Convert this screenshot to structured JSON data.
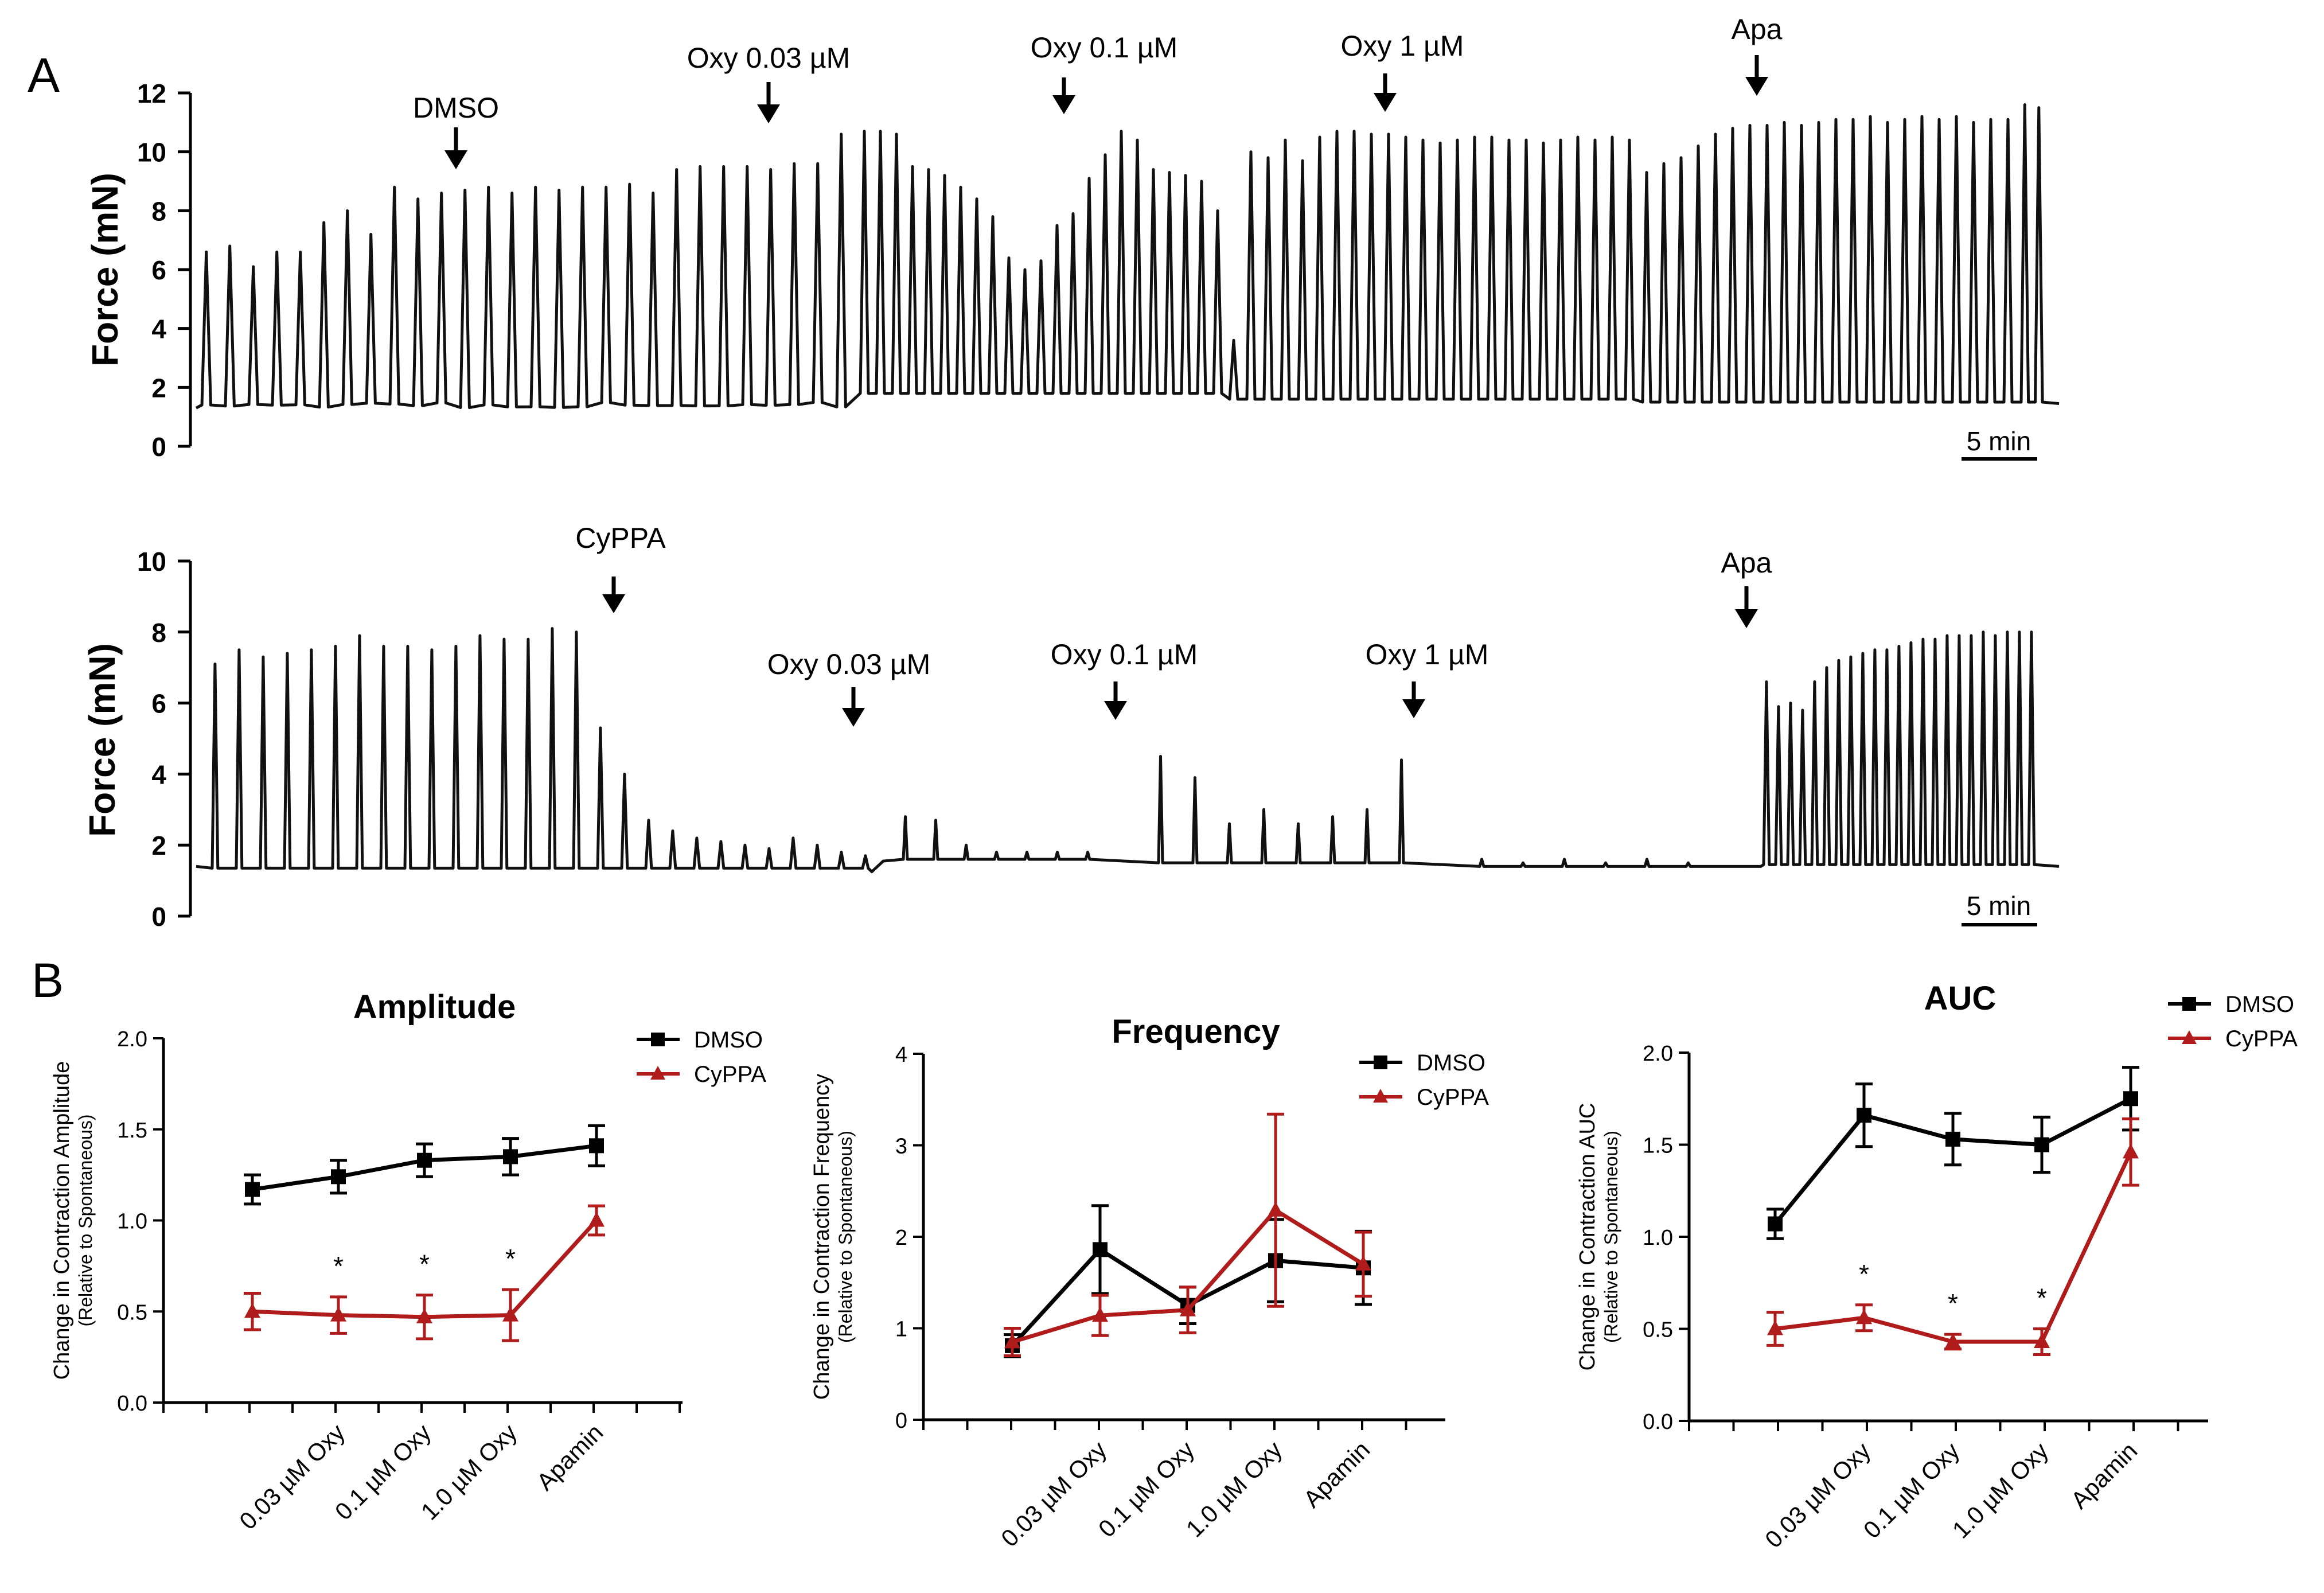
{
  "panels": {
    "a": "A",
    "b": "B"
  },
  "colors": {
    "dmso": "#000000",
    "cyppa": "#b01c1c",
    "trace": "#111111"
  },
  "trace_top": {
    "ylabel": "Force (mN)",
    "yticks": [
      "0",
      "2",
      "4",
      "6",
      "8",
      "10",
      "12"
    ],
    "scalebar": "5 min",
    "annotations": [
      "DMSO",
      "Oxy 0.03 µM",
      "Oxy 0.1 µM",
      "Oxy 1 µM",
      "Apa"
    ]
  },
  "trace_bottom": {
    "ylabel": "Force (mN)",
    "yticks": [
      "0",
      "2",
      "4",
      "6",
      "8",
      "10"
    ],
    "scalebar": "5 min",
    "annotations": [
      "CyPPA",
      "Oxy 0.03 µM",
      "Oxy 0.1 µM",
      "Oxy 1 µM",
      "Apa"
    ]
  },
  "chart_data": [
    {
      "type": "line",
      "title": "Amplitude",
      "ylabel": "Change in Contraction Amplitude",
      "ylabel_sub": "(Relative to Spontaneous)",
      "ylim": [
        0,
        2.0
      ],
      "yticks": [
        "0.0",
        "0.5",
        "1.0",
        "1.5",
        "2.0"
      ],
      "categories": [
        "",
        "0.03 µM Oxy",
        "0.1 µM Oxy",
        "1.0 µM Oxy",
        "Apamin"
      ],
      "series": [
        {
          "name": "DMSO",
          "values": [
            1.17,
            1.24,
            1.33,
            1.35,
            1.41
          ],
          "err": [
            0.08,
            0.09,
            0.09,
            0.1,
            0.11
          ]
        },
        {
          "name": "CyPPA",
          "values": [
            0.5,
            0.48,
            0.47,
            0.48,
            1.0
          ],
          "err": [
            0.1,
            0.1,
            0.12,
            0.14,
            0.08
          ]
        }
      ],
      "significance": [
        "",
        "*",
        "*",
        "*",
        ""
      ]
    },
    {
      "type": "line",
      "title": "Frequency",
      "ylabel": "Change in Contraction Frequency",
      "ylabel_sub": "(Relative to Spontaneous)",
      "ylim": [
        0,
        4
      ],
      "yticks": [
        "0",
        "1",
        "2",
        "3",
        "4"
      ],
      "categories": [
        "",
        "0.03 µM Oxy",
        "0.1 µM Oxy",
        "1.0 µM Oxy",
        "Apamin"
      ],
      "series": [
        {
          "name": "DMSO",
          "values": [
            0.81,
            1.86,
            1.25,
            1.74,
            1.66
          ],
          "err": [
            0.12,
            0.48,
            0.2,
            0.45,
            0.4
          ]
        },
        {
          "name": "CyPPA",
          "values": [
            0.85,
            1.14,
            1.2,
            2.29,
            1.7
          ],
          "err": [
            0.15,
            0.22,
            0.25,
            1.05,
            0.35
          ]
        }
      ],
      "significance": [
        "",
        "",
        "",
        "",
        ""
      ]
    },
    {
      "type": "line",
      "title": "AUC",
      "ylabel": "Change in Contraction AUC",
      "ylabel_sub": "(Relative to Spontaneous)",
      "ylim": [
        0,
        2.0
      ],
      "yticks": [
        "0.0",
        "0.5",
        "1.0",
        "1.5",
        "2.0"
      ],
      "categories": [
        "",
        "0.03 µM Oxy",
        "0.1 µM Oxy",
        "1.0 µM Oxy",
        "Apamin"
      ],
      "series": [
        {
          "name": "DMSO",
          "values": [
            1.07,
            1.66,
            1.53,
            1.5,
            1.75
          ],
          "err": [
            0.08,
            0.17,
            0.14,
            0.15,
            0.17
          ]
        },
        {
          "name": "CyPPA",
          "values": [
            0.5,
            0.56,
            0.43,
            0.43,
            1.46
          ],
          "err": [
            0.09,
            0.07,
            0.04,
            0.07,
            0.18
          ]
        }
      ],
      "significance": [
        "",
        "*",
        "*",
        "*",
        ""
      ]
    }
  ]
}
